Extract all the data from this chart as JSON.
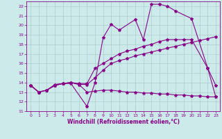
{
  "xlabel": "Windchill (Refroidissement éolien,°C)",
  "background_color": "#cceaea",
  "line_color": "#880088",
  "grid_color": "#aacccc",
  "xlim": [
    -0.5,
    23.5
  ],
  "ylim": [
    11,
    22.5
  ],
  "yticks": [
    11,
    12,
    13,
    14,
    15,
    16,
    17,
    18,
    19,
    20,
    21,
    22
  ],
  "xticks": [
    0,
    1,
    2,
    3,
    4,
    5,
    6,
    7,
    8,
    9,
    10,
    11,
    12,
    13,
    14,
    15,
    16,
    17,
    18,
    19,
    20,
    21,
    22,
    23
  ],
  "series": [
    {
      "x": [
        0,
        1,
        2,
        3,
        4,
        5,
        7,
        8,
        9,
        10,
        11,
        13,
        14,
        15,
        16,
        17,
        18,
        20,
        22,
        23
      ],
      "y": [
        13.7,
        13.0,
        13.2,
        13.8,
        13.9,
        13.9,
        11.5,
        14.0,
        18.7,
        20.1,
        19.5,
        20.6,
        18.5,
        22.2,
        22.2,
        22.0,
        21.5,
        20.7,
        15.5,
        13.7
      ]
    },
    {
      "x": [
        0,
        1,
        2,
        3,
        4,
        5,
        6,
        7,
        8,
        9,
        10,
        11,
        12,
        13,
        14,
        15,
        16,
        17,
        18,
        19,
        20,
        21,
        22,
        23
      ],
      "y": [
        13.7,
        13.0,
        13.2,
        13.7,
        13.9,
        14.0,
        13.8,
        13.0,
        13.1,
        13.2,
        13.2,
        13.1,
        13.0,
        13.0,
        12.9,
        12.9,
        12.8,
        12.8,
        12.7,
        12.7,
        12.6,
        12.6,
        12.5,
        12.5
      ]
    },
    {
      "x": [
        0,
        1,
        2,
        3,
        4,
        5,
        6,
        7,
        8,
        9,
        10,
        11,
        12,
        13,
        14,
        15,
        16,
        17,
        18,
        19,
        20,
        21,
        22,
        23
      ],
      "y": [
        13.7,
        13.0,
        13.2,
        13.7,
        13.9,
        14.0,
        13.8,
        13.8,
        14.5,
        15.3,
        16.0,
        16.3,
        16.5,
        16.8,
        17.0,
        17.2,
        17.4,
        17.6,
        17.8,
        18.0,
        18.2,
        18.4,
        18.6,
        18.8
      ]
    },
    {
      "x": [
        0,
        1,
        2,
        3,
        4,
        5,
        6,
        7,
        8,
        9,
        10,
        11,
        12,
        13,
        14,
        15,
        16,
        17,
        18,
        19,
        20,
        22,
        23
      ],
      "y": [
        13.7,
        13.0,
        13.2,
        13.7,
        13.9,
        14.0,
        13.9,
        13.9,
        15.5,
        16.0,
        16.5,
        17.0,
        17.3,
        17.5,
        17.8,
        18.0,
        18.3,
        18.5,
        18.5,
        18.5,
        18.5,
        15.5,
        12.5
      ]
    }
  ]
}
